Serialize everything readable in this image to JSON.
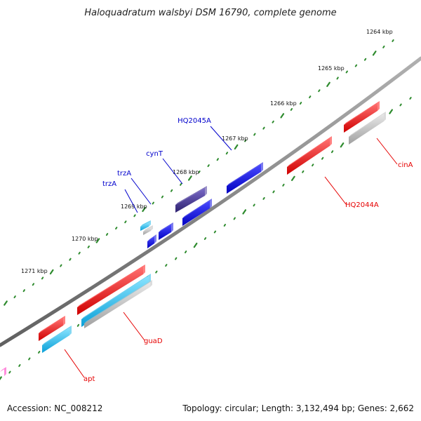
{
  "title": "Haloquadratum walsbyi DSM 16790, complete genome",
  "footer": {
    "accession": "Accession: NC_008212",
    "summary": "Topology: circular; Length: 3,132,494 bp; Genes: 2,662"
  },
  "colors": {
    "backbone": "#808080",
    "tick": "#2e8b2e",
    "label_red": "#e60000",
    "label_blue": "#0000cc",
    "red": "#ff1a1a",
    "blue": "#1010e0",
    "cyan": "#20b8e8",
    "gray": "#c0c0c0",
    "purple": "#4a3a9a",
    "magenta": "#ff30c0"
  },
  "ticks": [
    {
      "label": "1264 kbp"
    },
    {
      "label": "1265 kbp"
    },
    {
      "label": "1266 kbp"
    },
    {
      "label": "1267 kbp"
    },
    {
      "label": "1268 kbp"
    },
    {
      "label": "1269 kbp"
    },
    {
      "label": "1270 kbp"
    },
    {
      "label": "1271 kbp"
    }
  ],
  "labels": [
    {
      "text": "HQ2045A",
      "color": "blue"
    },
    {
      "text": "cynT",
      "color": "blue"
    },
    {
      "text": "trzA",
      "color": "blue"
    },
    {
      "text": "trzA",
      "color": "blue"
    },
    {
      "text": "cinA",
      "color": "red"
    },
    {
      "text": "HQ2044A",
      "color": "red"
    },
    {
      "text": "guaD",
      "color": "red"
    },
    {
      "text": "apt",
      "color": "red"
    }
  ]
}
